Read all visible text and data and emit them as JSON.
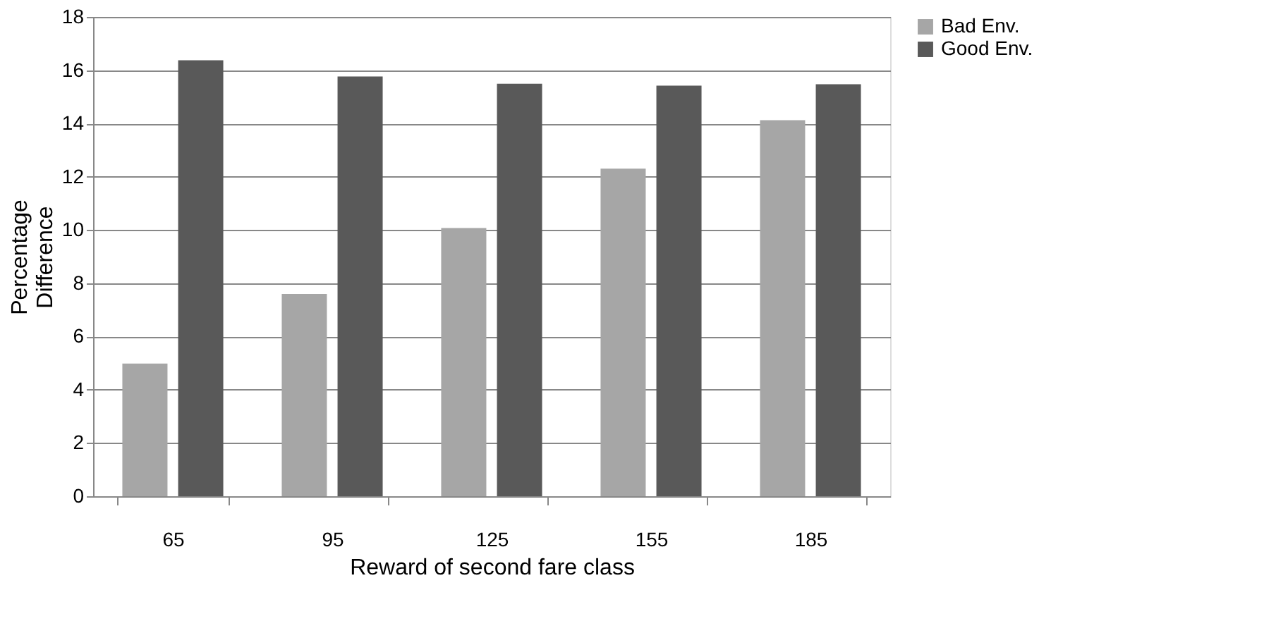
{
  "chart_data": {
    "type": "bar",
    "xlabel": "Reward of second  fare class",
    "ylabel": "Percentage\nDifference",
    "categories": [
      "65",
      "95",
      "125",
      "155",
      "185"
    ],
    "series": [
      {
        "name": "Bad Env.",
        "color": "#a6a6a6",
        "values": [
          4.98,
          7.6,
          10.07,
          12.3,
          14.12
        ]
      },
      {
        "name": "Good Env.",
        "color": "#595959",
        "values": [
          16.37,
          15.76,
          15.49,
          15.42,
          15.47
        ]
      }
    ],
    "ylim": [
      0,
      18
    ],
    "yticks": [
      0,
      2,
      4,
      6,
      8,
      10,
      12,
      14,
      16,
      18
    ],
    "grid": "y",
    "legend": "right"
  }
}
